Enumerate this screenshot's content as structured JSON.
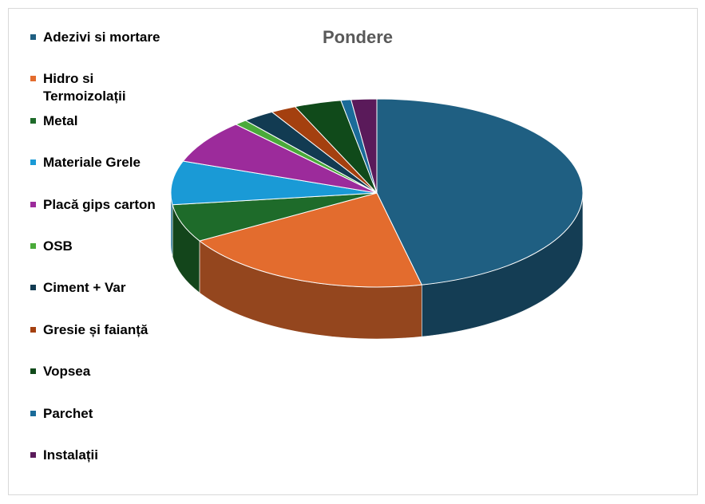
{
  "chart_data": {
    "type": "pie3d",
    "title": "Pondere",
    "categories": [
      "Adezivi si mortare",
      "Hidro si Termoizolații",
      "Metal",
      "Materiale Grele",
      "Placă gips carton",
      "OSB",
      "Ciment + Var",
      "Gresie și faianță",
      "Vopsea",
      "Parchet",
      "Instalații"
    ],
    "values": [
      46.5,
      20,
      6.5,
      7.5,
      7.5,
      1,
      2.5,
      2,
      3.7,
      0.8,
      2
    ],
    "colors": [
      "#1f5f82",
      "#e36c2e",
      "#1e6b2a",
      "#1a9ad6",
      "#9c2b9b",
      "#4aaa3a",
      "#123b52",
      "#a4400f",
      "#104a1a",
      "#1a6b99",
      "#5a1a5a"
    ],
    "legend": "left"
  }
}
